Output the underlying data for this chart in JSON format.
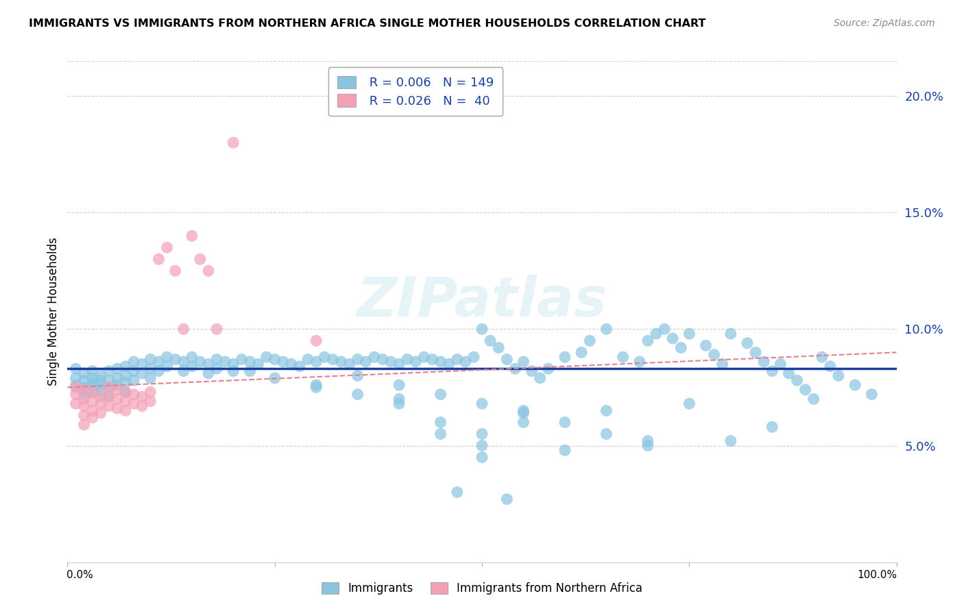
{
  "title": "IMMIGRANTS VS IMMIGRANTS FROM NORTHERN AFRICA SINGLE MOTHER HOUSEHOLDS CORRELATION CHART",
  "source": "Source: ZipAtlas.com",
  "ylabel": "Single Mother Households",
  "yticks": [
    0.05,
    0.1,
    0.15,
    0.2
  ],
  "ytick_labels": [
    "5.0%",
    "10.0%",
    "15.0%",
    "20.0%"
  ],
  "xlim": [
    0.0,
    1.0
  ],
  "ylim": [
    0.0,
    0.215
  ],
  "legend_r1": "R = 0.006",
  "legend_n1": "N = 149",
  "legend_r2": "R = 0.026",
  "legend_n2": "N =  40",
  "color_blue": "#89c4e1",
  "color_pink": "#f4a0b5",
  "color_blue_line": "#1a3fa0",
  "color_pink_line": "#e08090",
  "color_text_blue": "#1a3fa0",
  "watermark": "ZIPatlas",
  "background_color": "#ffffff",
  "grid_color": "#d0d0d0",
  "blue_scatter_x": [
    0.01,
    0.01,
    0.01,
    0.02,
    0.02,
    0.02,
    0.02,
    0.03,
    0.03,
    0.03,
    0.03,
    0.03,
    0.04,
    0.04,
    0.04,
    0.04,
    0.05,
    0.05,
    0.05,
    0.05,
    0.06,
    0.06,
    0.06,
    0.07,
    0.07,
    0.07,
    0.07,
    0.08,
    0.08,
    0.08,
    0.09,
    0.09,
    0.1,
    0.1,
    0.1,
    0.11,
    0.11,
    0.12,
    0.12,
    0.13,
    0.14,
    0.14,
    0.15,
    0.15,
    0.16,
    0.17,
    0.17,
    0.18,
    0.18,
    0.19,
    0.2,
    0.21,
    0.22,
    0.22,
    0.23,
    0.24,
    0.25,
    0.26,
    0.27,
    0.28,
    0.29,
    0.3,
    0.31,
    0.32,
    0.33,
    0.34,
    0.35,
    0.36,
    0.37,
    0.38,
    0.39,
    0.4,
    0.41,
    0.42,
    0.43,
    0.44,
    0.45,
    0.46,
    0.47,
    0.48,
    0.49,
    0.5,
    0.51,
    0.52,
    0.53,
    0.54,
    0.55,
    0.56,
    0.57,
    0.58,
    0.6,
    0.62,
    0.63,
    0.65,
    0.67,
    0.69,
    0.7,
    0.71,
    0.72,
    0.73,
    0.74,
    0.75,
    0.77,
    0.78,
    0.79,
    0.8,
    0.82,
    0.83,
    0.84,
    0.85,
    0.86,
    0.87,
    0.88,
    0.89,
    0.9,
    0.91,
    0.92,
    0.93,
    0.95,
    0.97,
    0.5,
    0.55,
    0.6,
    0.65,
    0.7,
    0.4,
    0.45,
    0.5,
    0.75,
    0.8,
    0.85,
    0.45,
    0.5,
    0.55,
    0.6,
    0.65,
    0.7,
    0.3,
    0.35,
    0.4,
    0.2,
    0.25,
    0.3,
    0.35,
    0.4,
    0.45,
    0.5,
    0.55,
    0.47,
    0.53
  ],
  "blue_scatter_y": [
    0.083,
    0.076,
    0.079,
    0.081,
    0.075,
    0.078,
    0.072,
    0.082,
    0.079,
    0.077,
    0.073,
    0.076,
    0.08,
    0.076,
    0.073,
    0.078,
    0.082,
    0.078,
    0.075,
    0.071,
    0.083,
    0.079,
    0.076,
    0.084,
    0.08,
    0.077,
    0.073,
    0.086,
    0.082,
    0.078,
    0.085,
    0.081,
    0.087,
    0.083,
    0.079,
    0.086,
    0.082,
    0.088,
    0.084,
    0.087,
    0.086,
    0.082,
    0.088,
    0.084,
    0.086,
    0.085,
    0.081,
    0.087,
    0.083,
    0.086,
    0.085,
    0.087,
    0.086,
    0.082,
    0.085,
    0.088,
    0.087,
    0.086,
    0.085,
    0.084,
    0.087,
    0.086,
    0.088,
    0.087,
    0.086,
    0.085,
    0.087,
    0.086,
    0.088,
    0.087,
    0.086,
    0.085,
    0.087,
    0.086,
    0.088,
    0.087,
    0.086,
    0.085,
    0.087,
    0.086,
    0.088,
    0.1,
    0.095,
    0.092,
    0.087,
    0.083,
    0.086,
    0.082,
    0.079,
    0.083,
    0.088,
    0.09,
    0.095,
    0.1,
    0.088,
    0.086,
    0.095,
    0.098,
    0.1,
    0.096,
    0.092,
    0.098,
    0.093,
    0.089,
    0.085,
    0.098,
    0.094,
    0.09,
    0.086,
    0.082,
    0.085,
    0.081,
    0.078,
    0.074,
    0.07,
    0.088,
    0.084,
    0.08,
    0.076,
    0.072,
    0.055,
    0.06,
    0.048,
    0.065,
    0.052,
    0.07,
    0.06,
    0.045,
    0.068,
    0.052,
    0.058,
    0.055,
    0.05,
    0.065,
    0.06,
    0.055,
    0.05,
    0.076,
    0.072,
    0.068,
    0.082,
    0.079,
    0.075,
    0.08,
    0.076,
    0.072,
    0.068,
    0.064,
    0.03,
    0.027
  ],
  "pink_scatter_x": [
    0.01,
    0.01,
    0.01,
    0.02,
    0.02,
    0.02,
    0.02,
    0.02,
    0.03,
    0.03,
    0.03,
    0.03,
    0.04,
    0.04,
    0.04,
    0.05,
    0.05,
    0.05,
    0.06,
    0.06,
    0.06,
    0.07,
    0.07,
    0.07,
    0.08,
    0.08,
    0.09,
    0.09,
    0.1,
    0.1,
    0.11,
    0.12,
    0.13,
    0.14,
    0.15,
    0.16,
    0.17,
    0.18,
    0.2,
    0.3
  ],
  "pink_scatter_y": [
    0.075,
    0.072,
    0.068,
    0.074,
    0.07,
    0.067,
    0.063,
    0.059,
    0.073,
    0.069,
    0.065,
    0.062,
    0.071,
    0.068,
    0.064,
    0.075,
    0.071,
    0.067,
    0.074,
    0.07,
    0.066,
    0.073,
    0.069,
    0.065,
    0.072,
    0.068,
    0.071,
    0.067,
    0.073,
    0.069,
    0.13,
    0.135,
    0.125,
    0.1,
    0.14,
    0.13,
    0.125,
    0.1,
    0.18,
    0.095
  ],
  "blue_line_start_y": 0.083,
  "blue_line_end_y": 0.083,
  "pink_line_start_y": 0.075,
  "pink_line_end_y": 0.09
}
